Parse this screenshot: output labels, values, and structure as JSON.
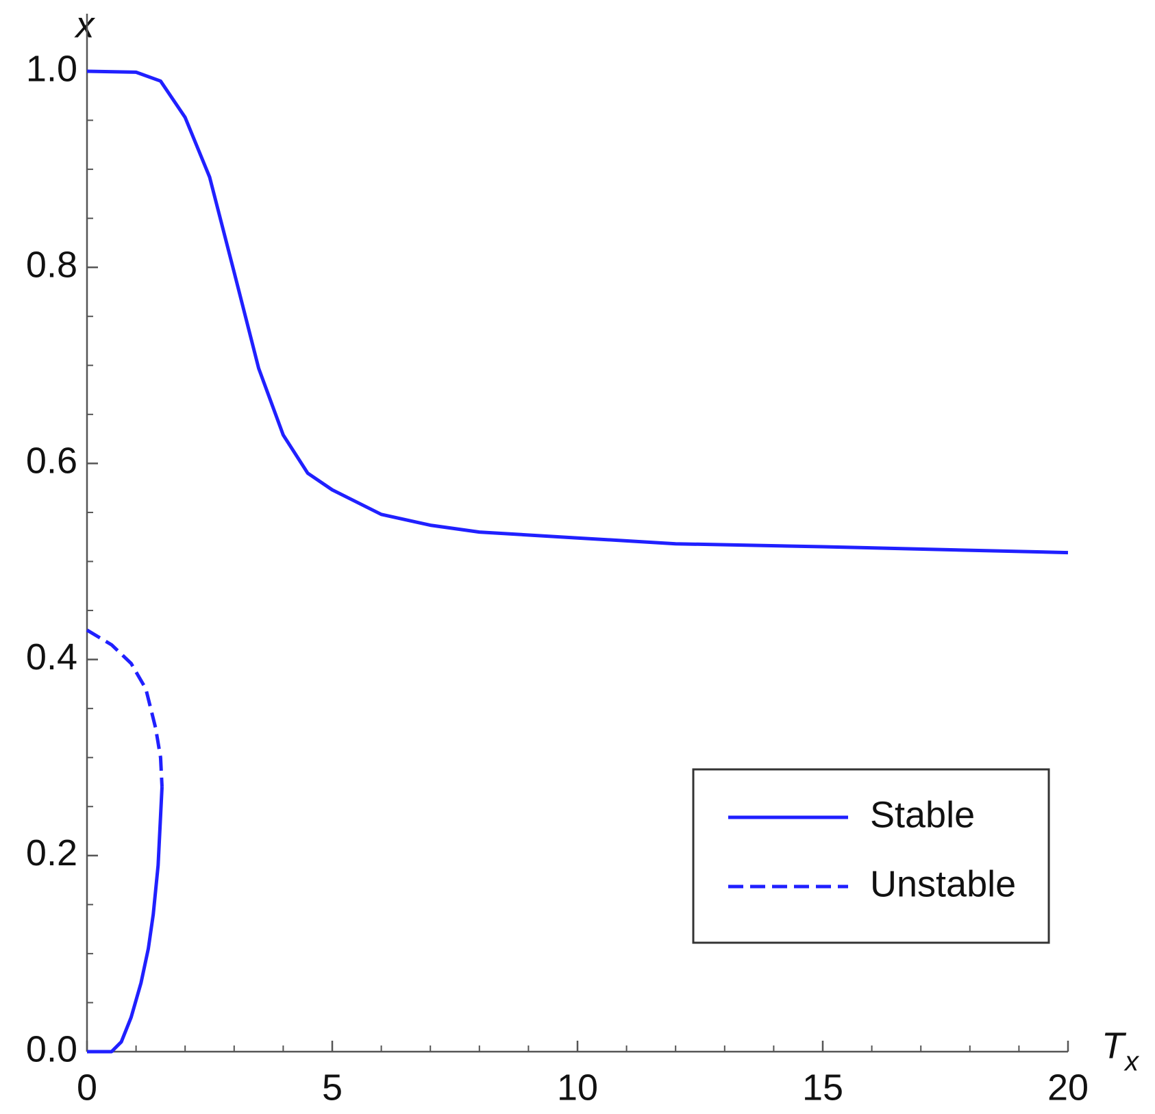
{
  "chart_data": {
    "type": "line",
    "xlabel": "T",
    "xlabel_subscript": "x",
    "ylabel": "x",
    "xlim": [
      0,
      20
    ],
    "ylim": [
      0,
      1
    ],
    "xticks": [
      0,
      5,
      10,
      15,
      20
    ],
    "yticks": [
      {
        "value": 0,
        "label": "0.0"
      },
      {
        "value": 0.2,
        "label": "0.2"
      },
      {
        "value": 0.4,
        "label": "0.4"
      },
      {
        "value": 0.6,
        "label": "0.6"
      },
      {
        "value": 0.8,
        "label": "0.8"
      },
      {
        "value": 1,
        "label": "1.0"
      }
    ],
    "xminorticks": [
      1,
      2,
      3,
      4,
      6,
      7,
      8,
      9,
      11,
      12,
      13,
      14,
      16,
      17,
      18,
      19
    ],
    "yminorticks": [
      0.05,
      0.1,
      0.15,
      0.25,
      0.3,
      0.35,
      0.45,
      0.5,
      0.55,
      0.65,
      0.7,
      0.75,
      0.85,
      0.9,
      0.95
    ],
    "legend": "lower-right",
    "series": [
      {
        "name": "Stable",
        "color": "#2020ff",
        "dash": false,
        "x": [
          0,
          1,
          1.5,
          2,
          2.5,
          3,
          3.5,
          4,
          4.5,
          5,
          6,
          7,
          8,
          10,
          12,
          15,
          20,
          null,
          0,
          0.5,
          0.7,
          0.9,
          1.1,
          1.25,
          1.35,
          1.45,
          1.53
        ],
        "values": [
          1,
          0.999,
          0.99,
          0.953,
          0.892,
          0.795,
          0.697,
          0.629,
          0.59,
          0.573,
          0.548,
          0.537,
          0.53,
          0.524,
          0.518,
          0.515,
          0.509,
          null,
          0,
          0,
          0.01,
          0.035,
          0.07,
          0.105,
          0.14,
          0.19,
          0.27
        ]
      },
      {
        "name": "Unstable",
        "color": "#2020ff",
        "dash": true,
        "x": [
          0,
          0.5,
          0.9,
          1.2,
          1.4,
          1.5,
          1.53
        ],
        "values": [
          0.43,
          0.415,
          0.396,
          0.37,
          0.33,
          0.3,
          0.27
        ]
      }
    ]
  }
}
